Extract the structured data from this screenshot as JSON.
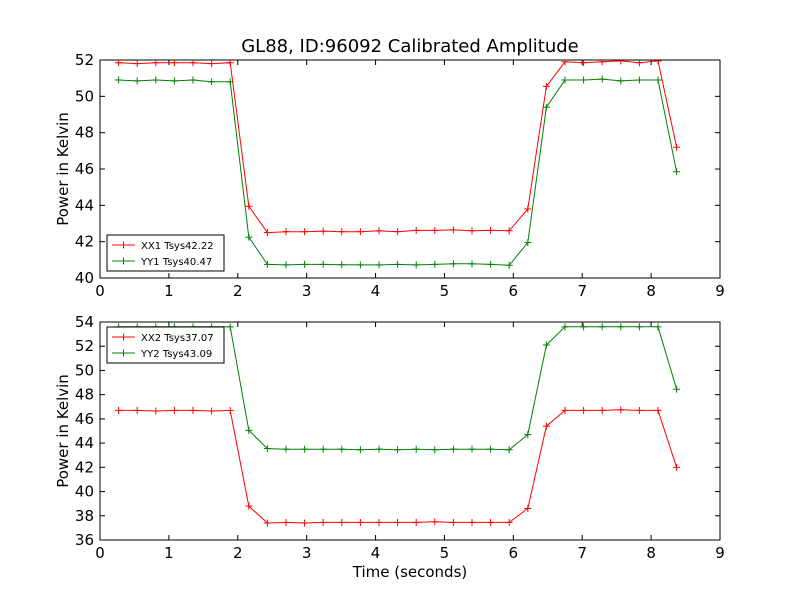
{
  "title": "GL88, ID:96092 Calibrated Amplitude",
  "chart_data": [
    {
      "type": "line",
      "title": "GL88, ID:96092 Calibrated Amplitude",
      "xlabel": "",
      "ylabel": "Power in Kelvin",
      "xlim": [
        0,
        9
      ],
      "ylim": [
        40,
        52
      ],
      "xticks": [
        "0",
        "1",
        "2",
        "3",
        "4",
        "5",
        "6",
        "7",
        "8",
        "9"
      ],
      "yticks": [
        "40",
        "42",
        "44",
        "46",
        "48",
        "50",
        "52"
      ],
      "grid": false,
      "legend_position": "lower-left",
      "x": [
        0.27,
        0.54,
        0.81,
        1.08,
        1.35,
        1.62,
        1.89,
        2.16,
        2.43,
        2.7,
        2.97,
        3.24,
        3.51,
        3.78,
        4.05,
        4.32,
        4.59,
        4.86,
        5.13,
        5.4,
        5.67,
        5.94,
        6.21,
        6.48,
        6.75,
        7.02,
        7.29,
        7.56,
        7.83,
        8.1,
        8.37
      ],
      "series": [
        {
          "name": "XX1 Tsys42.22",
          "color": "#ff0000",
          "values": [
            51.85,
            51.8,
            51.85,
            51.85,
            51.85,
            51.8,
            51.85,
            43.95,
            42.5,
            42.55,
            42.55,
            42.58,
            42.55,
            42.55,
            42.6,
            42.55,
            42.62,
            42.62,
            42.65,
            42.6,
            42.62,
            42.6,
            43.8,
            50.55,
            51.9,
            51.85,
            51.9,
            51.95,
            51.85,
            51.95,
            47.2
          ]
        },
        {
          "name": "YY1 Tsys40.47",
          "color": "#008000",
          "values": [
            50.9,
            50.85,
            50.9,
            50.85,
            50.9,
            50.8,
            50.8,
            42.25,
            40.75,
            40.72,
            40.75,
            40.75,
            40.73,
            40.72,
            40.72,
            40.75,
            40.72,
            40.75,
            40.78,
            40.78,
            40.75,
            40.7,
            41.95,
            49.4,
            50.9,
            50.9,
            50.95,
            50.85,
            50.9,
            50.9,
            45.85
          ]
        }
      ]
    },
    {
      "type": "line",
      "title": "",
      "xlabel": "Time (seconds)",
      "ylabel": "Power in Kelvin",
      "xlim": [
        0,
        9
      ],
      "ylim": [
        36,
        54
      ],
      "xticks": [
        "0",
        "1",
        "2",
        "3",
        "4",
        "5",
        "6",
        "7",
        "8",
        "9"
      ],
      "yticks": [
        "36",
        "38",
        "40",
        "42",
        "44",
        "46",
        "48",
        "50",
        "52",
        "54"
      ],
      "grid": false,
      "legend_position": "upper-left",
      "x": [
        0.27,
        0.54,
        0.81,
        1.08,
        1.35,
        1.62,
        1.89,
        2.16,
        2.43,
        2.7,
        2.97,
        3.24,
        3.51,
        3.78,
        4.05,
        4.32,
        4.59,
        4.86,
        5.13,
        5.4,
        5.67,
        5.94,
        6.21,
        6.48,
        6.75,
        7.02,
        7.29,
        7.56,
        7.83,
        8.1,
        8.37
      ],
      "series": [
        {
          "name": "XX2 Tsys37.07",
          "color": "#ff0000",
          "values": [
            46.7,
            46.7,
            46.65,
            46.7,
            46.7,
            46.65,
            46.7,
            38.8,
            37.4,
            37.45,
            37.4,
            37.45,
            37.45,
            37.45,
            37.45,
            37.45,
            37.45,
            37.5,
            37.45,
            37.45,
            37.45,
            37.45,
            38.6,
            45.4,
            46.7,
            46.7,
            46.7,
            46.75,
            46.7,
            46.7,
            42.0
          ]
        },
        {
          "name": "YY2 Tsys43.09",
          "color": "#008000",
          "values": [
            53.6,
            53.6,
            53.6,
            53.6,
            53.6,
            53.6,
            53.6,
            45.05,
            43.55,
            43.5,
            43.5,
            43.5,
            43.5,
            43.45,
            43.5,
            43.45,
            43.5,
            43.45,
            43.5,
            43.5,
            43.5,
            43.45,
            44.7,
            52.1,
            53.6,
            53.6,
            53.6,
            53.6,
            53.6,
            53.6,
            48.45
          ]
        }
      ]
    }
  ]
}
